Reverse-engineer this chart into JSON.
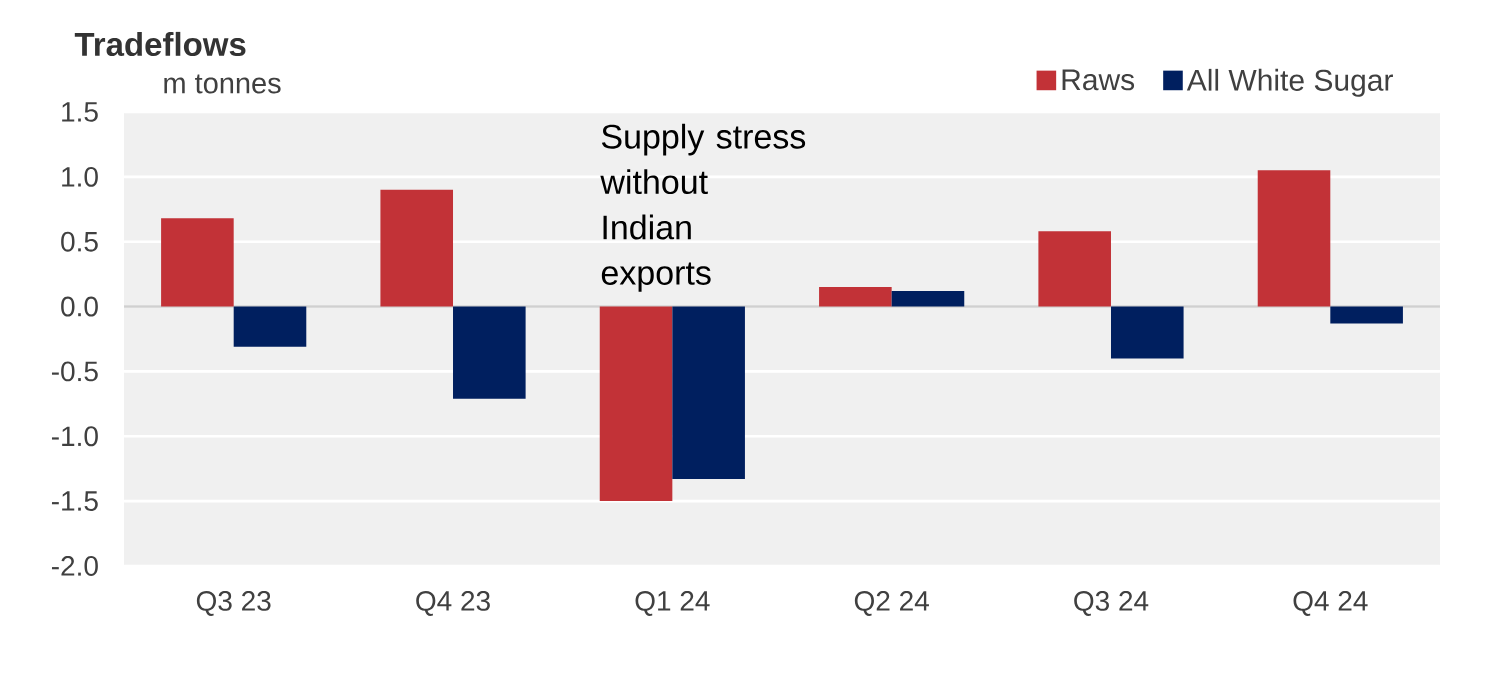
{
  "chart_data": {
    "type": "bar",
    "title": "Tradeflows",
    "ylabel": "m tonnes",
    "categories": [
      "Q3 23",
      "Q4 23",
      "Q1 24",
      "Q2 24",
      "Q3 24",
      "Q4 24"
    ],
    "series": [
      {
        "name": "Raws",
        "color": "#c23237",
        "values": [
          0.68,
          0.9,
          -1.5,
          0.15,
          0.58,
          1.05
        ]
      },
      {
        "name": "All White Sugar",
        "color": "#001f5f",
        "values": [
          -0.31,
          -0.71,
          -1.33,
          0.12,
          -0.4,
          -0.13
        ]
      }
    ],
    "ylim": [
      -2,
      1.5
    ],
    "yticks": [
      {
        "value": -2,
        "label": "-2.0"
      },
      {
        "value": -1.5,
        "label": "-1.5"
      },
      {
        "value": -1,
        "label": "-1.0"
      },
      {
        "value": -0.5,
        "label": "-0.5"
      },
      {
        "value": 0,
        "label": "0.0"
      },
      {
        "value": 0.5,
        "label": "0.5"
      },
      {
        "value": 1,
        "label": "1.0"
      },
      {
        "value": 1.5,
        "label": "1.5"
      }
    ],
    "grid": "y",
    "legend": "top right",
    "annotations": [
      "Supply stress without Indian exports"
    ]
  }
}
